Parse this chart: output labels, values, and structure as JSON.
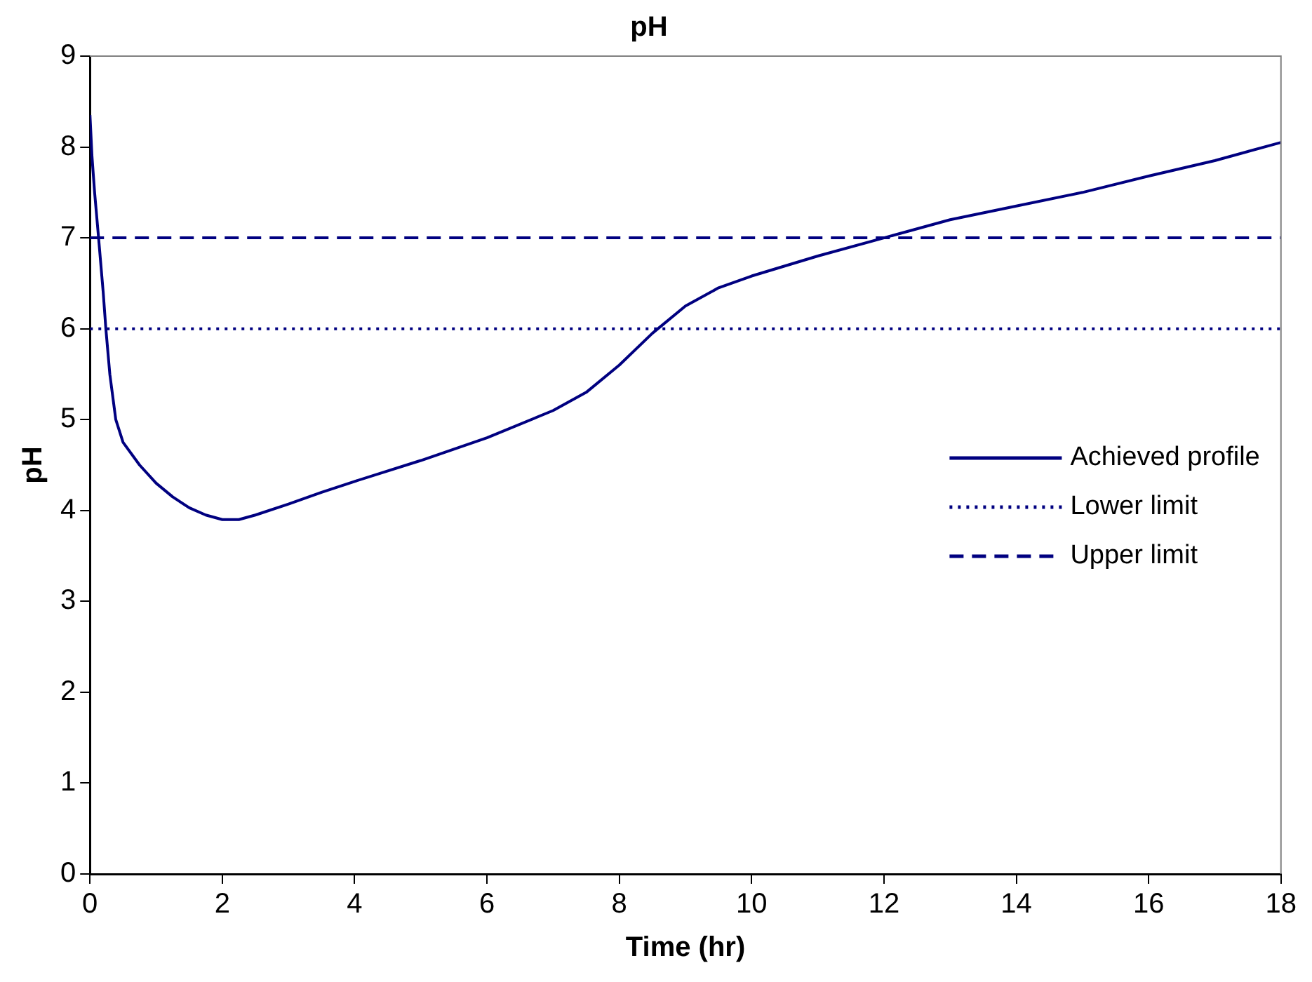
{
  "chart_data": {
    "type": "line",
    "title": "pH",
    "xlabel": "Time (hr)",
    "ylabel": "pH",
    "xlim": [
      0,
      18
    ],
    "xticks": [
      0,
      2,
      4,
      6,
      8,
      10,
      12,
      14,
      16,
      18
    ],
    "ylim": [
      0,
      9
    ],
    "yticks": [
      0,
      1,
      2,
      3,
      4,
      5,
      6,
      7,
      8,
      9
    ],
    "grid": false,
    "legend": "right",
    "marker": "none",
    "series": [
      {
        "name": "Achieved profile",
        "color": "#000080",
        "line_style": "solid",
        "x": [
          0,
          0.03,
          0.07,
          0.13,
          0.2,
          0.24,
          0.3,
          0.39,
          0.5,
          0.75,
          1,
          1.25,
          1.5,
          1.75,
          2,
          2.25,
          2.5,
          3,
          3.5,
          4,
          5,
          6,
          7,
          7.5,
          8,
          8.5,
          9,
          9.5,
          10,
          11,
          12,
          13,
          14,
          15,
          16,
          17,
          18
        ],
        "values": [
          8.35,
          7.9,
          7.5,
          7.0,
          6.4,
          6.0,
          5.5,
          5.0,
          4.75,
          4.5,
          4.3,
          4.15,
          4.03,
          3.95,
          3.9,
          3.9,
          3.95,
          4.07,
          4.2,
          4.32,
          4.55,
          4.8,
          5.1,
          5.3,
          5.6,
          5.95,
          6.25,
          6.45,
          6.58,
          6.8,
          7.0,
          7.2,
          7.35,
          7.5,
          7.68,
          7.85,
          8.05
        ]
      },
      {
        "name": "Lower limit",
        "color": "#000080",
        "line_style": "dotted",
        "x": [
          0,
          18
        ],
        "values": [
          6,
          6
        ]
      },
      {
        "name": "Upper limit",
        "color": "#000080",
        "line_style": "dashed",
        "x": [
          0,
          18
        ],
        "values": [
          7,
          7
        ]
      }
    ]
  }
}
